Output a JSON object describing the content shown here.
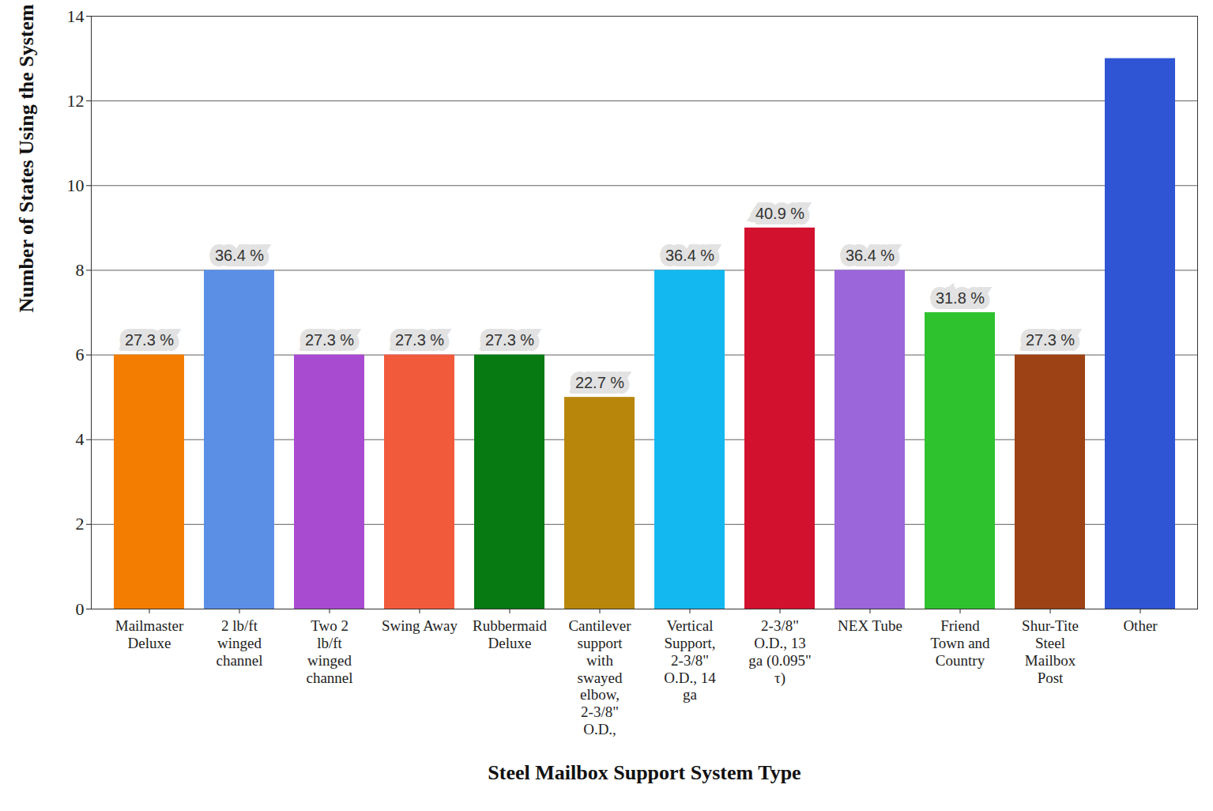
{
  "chart_data": {
    "type": "bar",
    "x_label": "Steel Mailbox Support System Type",
    "y_label": "Number of States Using the System",
    "categories": [
      "Mailmaster Deluxe",
      "2 lb/ft winged channel",
      "Two 2 lb/ft winged channel",
      "Swing Away",
      "Rubbermaid Deluxe",
      "Cantilever support with swayed elbow, 2-3/8\" O.D.,",
      "Vertical Support, 2-3/8\" O.D., 14 ga",
      "2-3/8\" O.D., 13 ga (0.095\" τ)",
      "NEX Tube",
      "Friend Town and Country",
      "Shur-Tite Steel Mailbox Post",
      "Other"
    ],
    "values": [
      6,
      8,
      6,
      6,
      6,
      5,
      8,
      9,
      8,
      7,
      6,
      13
    ],
    "percent_labels": [
      "27.3 %",
      "36.4 %",
      "27.3 %",
      "27.3 %",
      "27.3 %",
      "22.7 %",
      "36.4 %",
      "40.9 %",
      "36.4 %",
      "31.8 %",
      "27.3 %",
      null
    ],
    "colors": [
      "#f27d00",
      "#5b8fe6",
      "#a94bd1",
      "#f25a3c",
      "#087a12",
      "#b8860b",
      "#14b8f0",
      "#d1112e",
      "#9a66d9",
      "#2fc22f",
      "#9c4214",
      "#2f55d4"
    ],
    "ylim": [
      0,
      14
    ],
    "yticks": [
      0,
      2,
      4,
      6,
      8,
      10,
      12,
      14
    ],
    "grid": true,
    "data_labels": true
  }
}
